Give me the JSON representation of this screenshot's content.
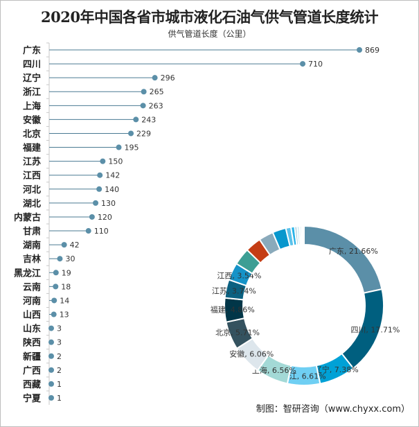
{
  "chart_data": {
    "type": "bar",
    "subtype": "lollipop + donut",
    "title": "2020年中国各省市城市液化石油气供气管道长度统计",
    "ylabel": "供气管道长度（公里）",
    "categories": [
      "广东",
      "四川",
      "辽宁",
      "浙江",
      "上海",
      "安徽",
      "北京",
      "福建",
      "江苏",
      "江西",
      "河北",
      "湖北",
      "内蒙古",
      "甘肃",
      "湖南",
      "吉林",
      "黑龙江",
      "云南",
      "河南",
      "山西",
      "山东",
      "陕西",
      "新疆",
      "广西",
      "西藏",
      "宁夏"
    ],
    "values": [
      869,
      710,
      296,
      265,
      263,
      243,
      229,
      195,
      150,
      142,
      140,
      130,
      120,
      110,
      42,
      30,
      19,
      18,
      14,
      13,
      3,
      3,
      2,
      2,
      1,
      1
    ],
    "xlim": [
      0,
      869
    ],
    "donut": {
      "labels": [
        "广东, 21.66%",
        "四川, 17.71%",
        "辽宁, 7.38%",
        "浙江, 6.61%",
        "上海, 6.56%",
        "安徽, 6.06%",
        "北京, 5.71%",
        "福建, 4.86%",
        "江苏, 3.74%",
        "江西, 3.54%"
      ],
      "colors": [
        "#5b8fa8",
        "#005f7f",
        "#00a1d6",
        "#6fcff3",
        "#a3d9d6",
        "#dde6ec",
        "#34525f",
        "#013648",
        "#0b6181",
        "#1593c8",
        "#3d9e94",
        "#c43d14",
        "#8aaabb",
        "#0897cd",
        "#5bc2eb",
        "#2ab3e8",
        "#9fc9d8",
        "#b6e0ee",
        "#c8e4ec",
        "#d7ecf1",
        "#e6e6e6",
        "#f2c4b6",
        "#dfe6ea",
        "#cfe1e8",
        "#eef1f3",
        "#e2e8eb"
      ]
    },
    "line_color": "#4a7a92",
    "dot_color": "#5b8fa8"
  },
  "footer": "制图：智研咨询（www.chyxx.com）"
}
